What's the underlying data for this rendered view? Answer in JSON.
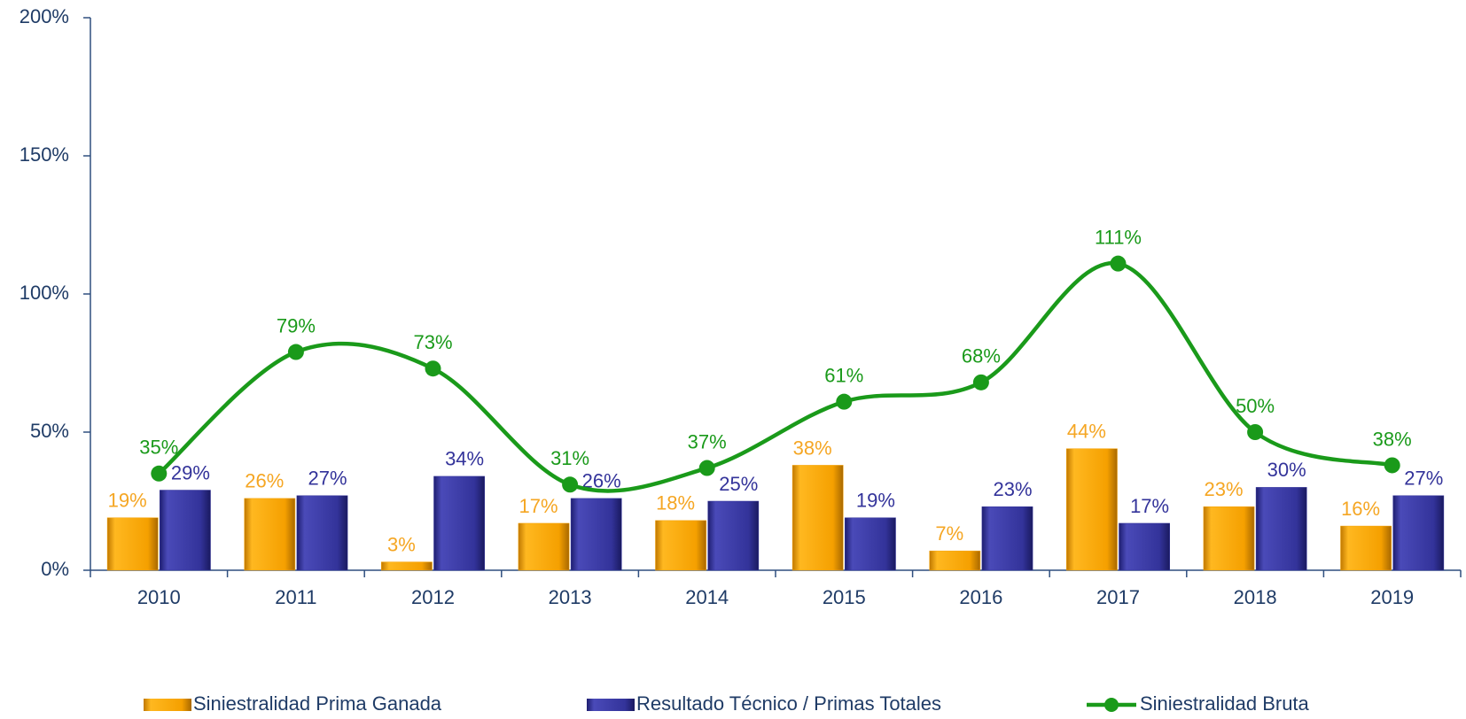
{
  "chart_data": {
    "type": "bar",
    "categories": [
      "2010",
      "2011",
      "2012",
      "2013",
      "2014",
      "2015",
      "2016",
      "2017",
      "2018",
      "2019"
    ],
    "series": [
      {
        "name": "Siniestralidad Prima Ganada",
        "type": "bar",
        "color": "#f5a000",
        "values": [
          19,
          26,
          3,
          17,
          18,
          38,
          7,
          44,
          23,
          16
        ],
        "value_labels": [
          "19%",
          "26%",
          "3%",
          "17%",
          "18%",
          "38%",
          "7%",
          "44%",
          "23%",
          "16%"
        ]
      },
      {
        "name": "Resultado Técnico / Primas Totales",
        "type": "bar",
        "color": "#33339a",
        "values": [
          29,
          27,
          34,
          26,
          25,
          19,
          23,
          17,
          30,
          27
        ],
        "value_labels": [
          "29%",
          "27%",
          "34%",
          "26%",
          "25%",
          "19%",
          "23%",
          "17%",
          "30%",
          "27%"
        ]
      },
      {
        "name": "Siniestralidad Bruta",
        "type": "line",
        "color": "#1a9a1a",
        "values": [
          35,
          79,
          73,
          31,
          37,
          61,
          68,
          111,
          50,
          38
        ],
        "value_labels": [
          "35%",
          "79%",
          "73%",
          "31%",
          "37%",
          "61%",
          "68%",
          "111%",
          "50%",
          "38%"
        ]
      }
    ],
    "ylim": [
      0,
      200
    ],
    "yticks": [
      {
        "value": 0,
        "label": "0%"
      },
      {
        "value": 50,
        "label": "50%"
      },
      {
        "value": 100,
        "label": "100%"
      },
      {
        "value": 150,
        "label": "150%"
      },
      {
        "value": 200,
        "label": "200%"
      }
    ],
    "grid": false,
    "legend": "bottom"
  }
}
